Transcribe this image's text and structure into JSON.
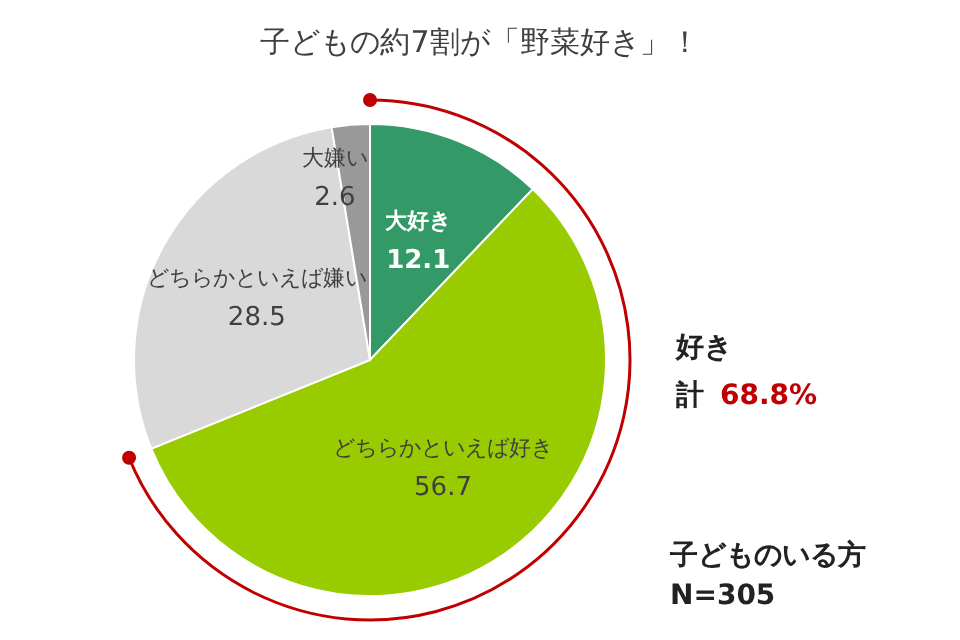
{
  "chart_data": {
    "type": "pie",
    "title": "子どもの約7割が「野菜好き」！",
    "categories": [
      "大好き",
      "どちらかといえば好き",
      "どちらかといえば嫌い",
      "大嫌い"
    ],
    "values": [
      12.1,
      56.7,
      28.5,
      2.6
    ],
    "colors": [
      "#339966",
      "#99cc00",
      "#d9d9d9",
      "#999999"
    ],
    "data_labels": true,
    "annotations": [
      "好き",
      "計",
      "68.8%",
      "子どものいる方",
      "N=305"
    ]
  }
}
